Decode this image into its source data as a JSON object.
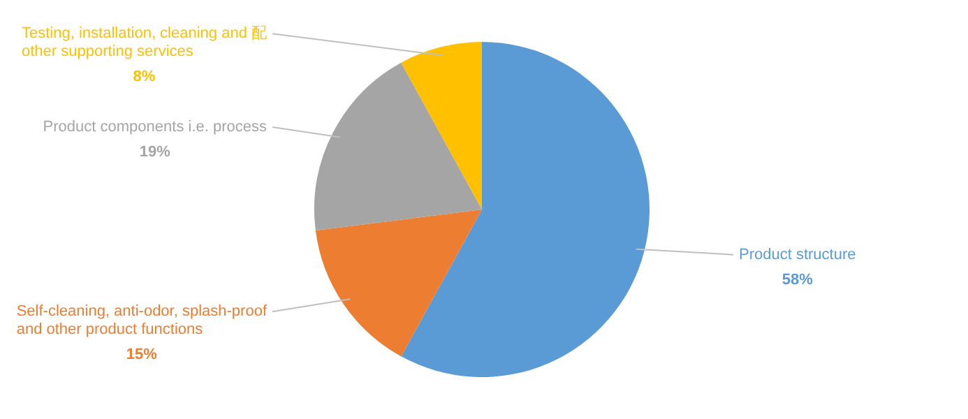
{
  "chart_data": {
    "type": "pie",
    "categories": [
      "Product structure",
      "Self-cleaning, anti-odor, splash-proof and other product functions",
      "Product components i.e. process",
      "Testing, installation, cleaning and 配 other supporting services"
    ],
    "values": [
      58,
      15,
      19,
      8
    ],
    "colors": [
      "#5b9bd5",
      "#ed7d31",
      "#a5a5a5",
      "#ffc000"
    ],
    "value_labels": [
      "58%",
      "15%",
      "19%",
      "8%"
    ],
    "legend": false
  }
}
